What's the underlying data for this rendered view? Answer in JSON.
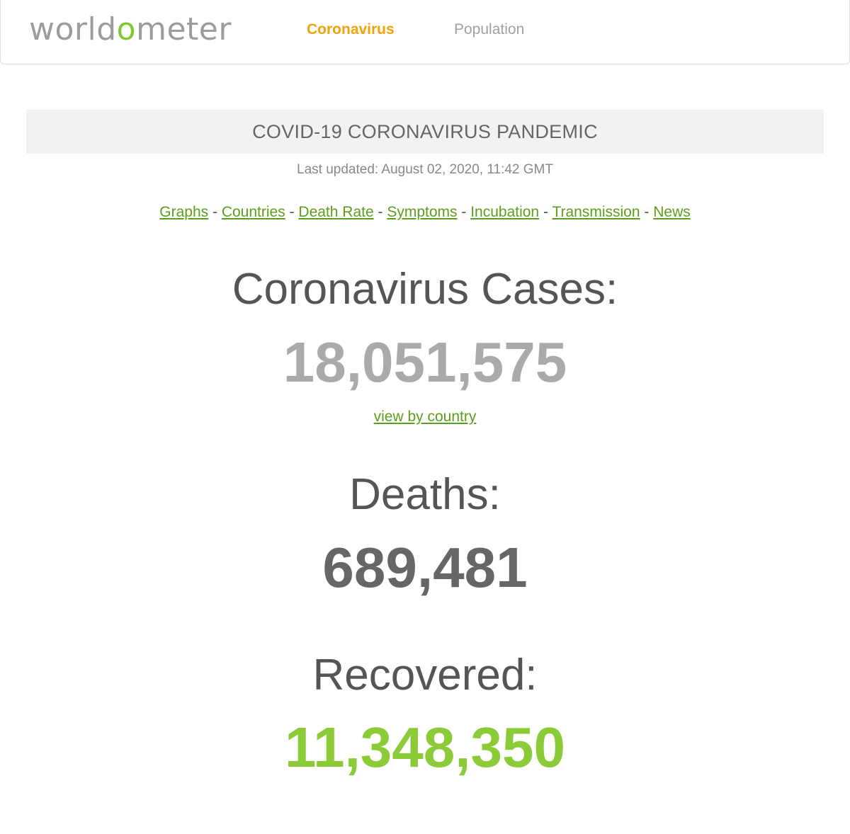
{
  "header": {
    "logo": {
      "part1": "world",
      "o": "o",
      "part2": "meter"
    },
    "nav": [
      {
        "label": "Coronavirus",
        "active": true
      },
      {
        "label": "Population",
        "active": false
      }
    ]
  },
  "banner": {
    "title": "COVID-19 CORONAVIRUS PANDEMIC"
  },
  "last_updated": "Last updated: August 02, 2020, 11:42 GMT",
  "links": {
    "items": [
      "Graphs",
      "Countries",
      "Death Rate",
      "Symptoms",
      "Incubation",
      "Transmission",
      "News"
    ],
    "separator": "-"
  },
  "cases": {
    "label": "Coronavirus Cases:",
    "value": "18,051,575",
    "view_link": "view by country"
  },
  "deaths": {
    "label": "Deaths:",
    "value": "689,481"
  },
  "recovered": {
    "label": "Recovered:",
    "value": "11,348,350"
  },
  "colors": {
    "brand_green": "#7ec92f",
    "link_green": "#5a9f1b",
    "nav_orange": "#f0a30a",
    "cases_gray": "#aaaaaa",
    "deaths_gray": "#666666",
    "recovered_green": "#8acb37"
  }
}
